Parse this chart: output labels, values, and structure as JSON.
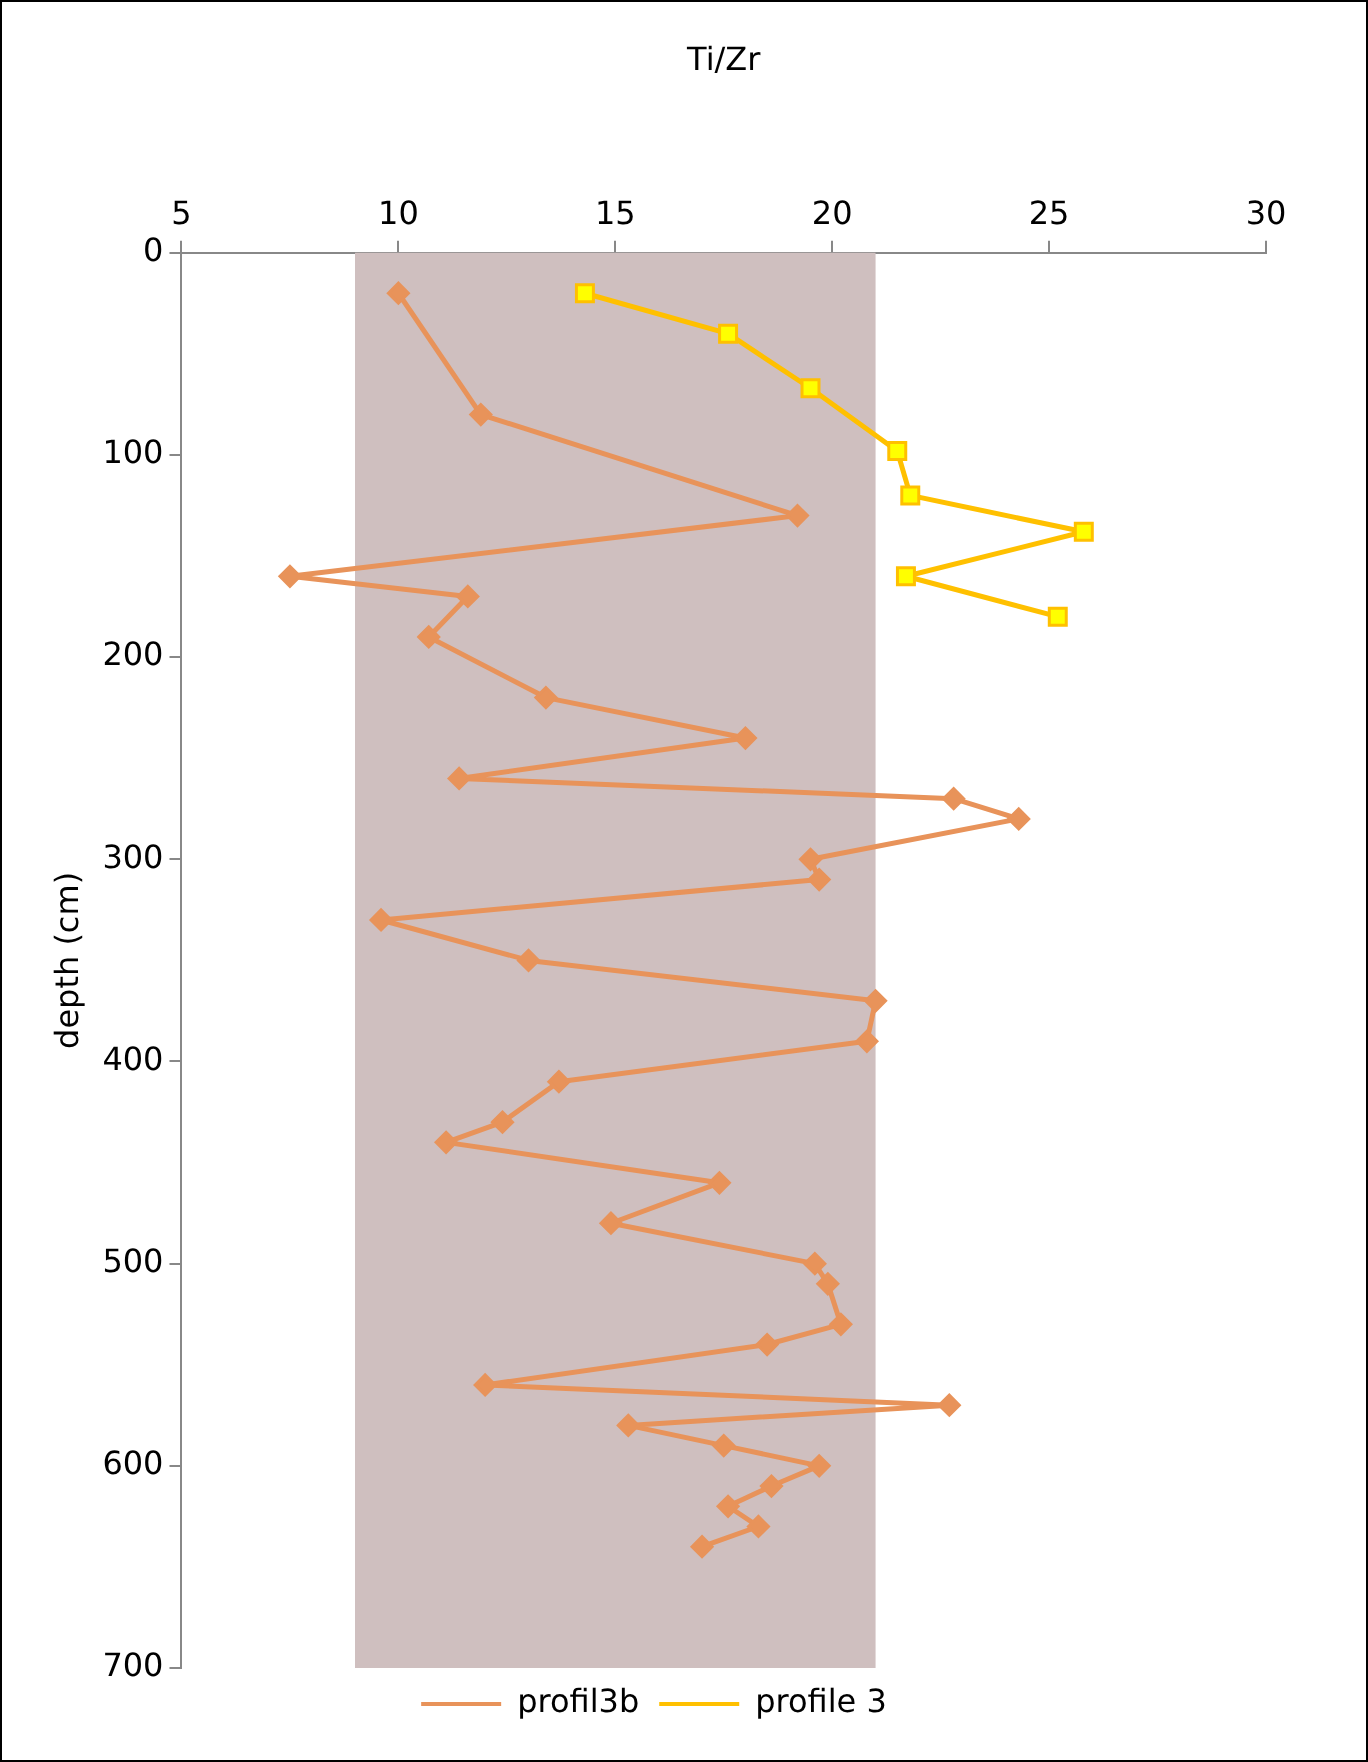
{
  "chart_data": {
    "type": "line",
    "xlabel": "Ti/Zr",
    "ylabel": "depth (cm)",
    "xlim": [
      5,
      30
    ],
    "xticks": [
      5,
      10,
      15,
      20,
      25,
      30
    ],
    "ylim": [
      700,
      0
    ],
    "yticks": [
      0,
      100,
      200,
      300,
      400,
      500,
      600,
      700
    ],
    "grid": false,
    "legend": "bottom",
    "bands": [
      {
        "axis": "x",
        "from": 9,
        "to": 21,
        "color": "#cfbfbf"
      }
    ],
    "series": [
      {
        "name": "profil3b",
        "color": "#e8935a",
        "marker": "diamond",
        "x": [
          10,
          11.9,
          19.2,
          7.5,
          11.6,
          10.7,
          13.4,
          18,
          11.4,
          22.8,
          24.3,
          19.5,
          19.7,
          9.6,
          13,
          21,
          20.8,
          13.7,
          12.4,
          11.1,
          17.4,
          14.9,
          19.6,
          19.9,
          20.2,
          18.5,
          12,
          22.7,
          15.3,
          17.5,
          19.7,
          18.6,
          17.6,
          18.3,
          17
        ],
        "values": [
          20,
          80,
          130,
          160,
          170,
          190,
          220,
          240,
          260,
          270,
          280,
          300,
          310,
          330,
          350,
          370,
          390,
          410,
          430,
          440,
          460,
          480,
          500,
          510,
          530,
          540,
          560,
          570,
          580,
          590,
          600,
          610,
          620,
          630,
          640
        ]
      },
      {
        "name": "profile 3",
        "color": "#ffc000",
        "marker": "square",
        "x": [
          14.3,
          17.6,
          19.5,
          21.5,
          21.8,
          25.8,
          21.7,
          25.2
        ],
        "values": [
          20,
          40,
          67,
          98,
          120,
          138,
          160,
          180
        ]
      }
    ]
  }
}
